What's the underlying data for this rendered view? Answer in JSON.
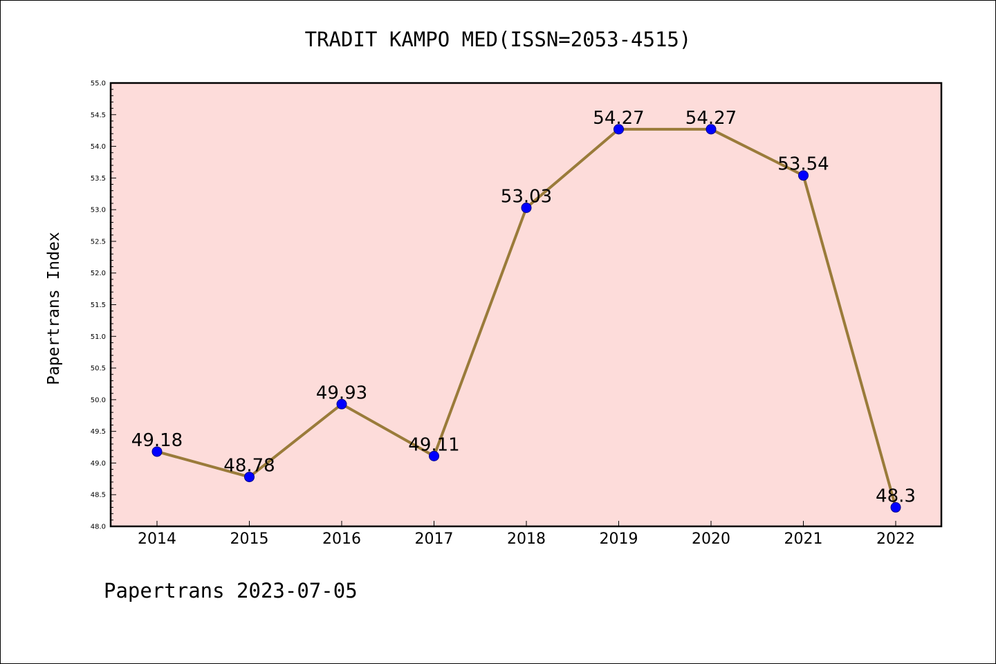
{
  "chart_data": {
    "type": "line",
    "title": "TRADIT KAMPO MED(ISSN=2053-4515)",
    "xlabel": "",
    "ylabel": "Papertrans Index",
    "categories": [
      "2014",
      "2015",
      "2016",
      "2017",
      "2018",
      "2019",
      "2020",
      "2021",
      "2022"
    ],
    "series": [
      {
        "values": [
          49.18,
          48.78,
          49.93,
          49.11,
          53.03,
          54.27,
          54.27,
          53.54,
          48.3
        ],
        "labels": [
          "49.18",
          "48.78",
          "49.93",
          "49.11",
          "53.03",
          "54.27",
          "54.27",
          "53.54",
          "48.3"
        ]
      }
    ],
    "ylim": [
      48.0,
      55.0
    ],
    "yticks": [
      "48.0",
      "48.5",
      "49.0",
      "49.5",
      "50.0",
      "50.5",
      "51.0",
      "51.5",
      "52.0",
      "52.5",
      "53.0",
      "53.5",
      "54.0",
      "54.5",
      "55.0"
    ],
    "grid": false,
    "legend": "none"
  },
  "footer": {
    "text": "Papertrans 2023-07-05"
  },
  "colors": {
    "plot_background": "#fddcda",
    "line": "#9a7b3a",
    "marker": "#0000ff",
    "marker_edge": "#00008b",
    "axis": "#000000"
  }
}
